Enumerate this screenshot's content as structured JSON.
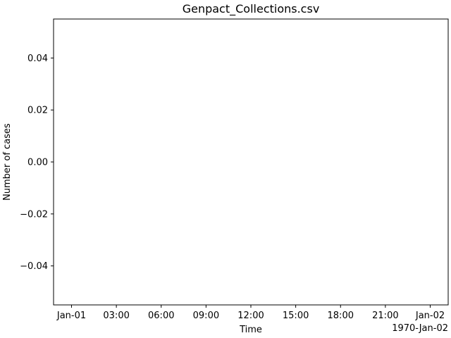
{
  "chart_data": {
    "type": "line",
    "title": "Genpact_Collections.csv",
    "xlabel": "Time",
    "ylabel": "Number of cases",
    "x_offset_label": "1970-Jan-02",
    "x_ticks": [
      "Jan-01",
      "03:00",
      "06:00",
      "09:00",
      "12:00",
      "15:00",
      "18:00",
      "21:00",
      "Jan-02"
    ],
    "y_ticks": [
      "0.04",
      "0.02",
      "0.00",
      "−0.02",
      "−0.04"
    ],
    "xlim": [
      "1970-01-01T00:00",
      "1970-01-02T00:00"
    ],
    "ylim": [
      -0.055,
      0.055
    ],
    "series": [],
    "grid": false,
    "colors": {
      "axis": "#000000",
      "background": "#ffffff"
    }
  }
}
